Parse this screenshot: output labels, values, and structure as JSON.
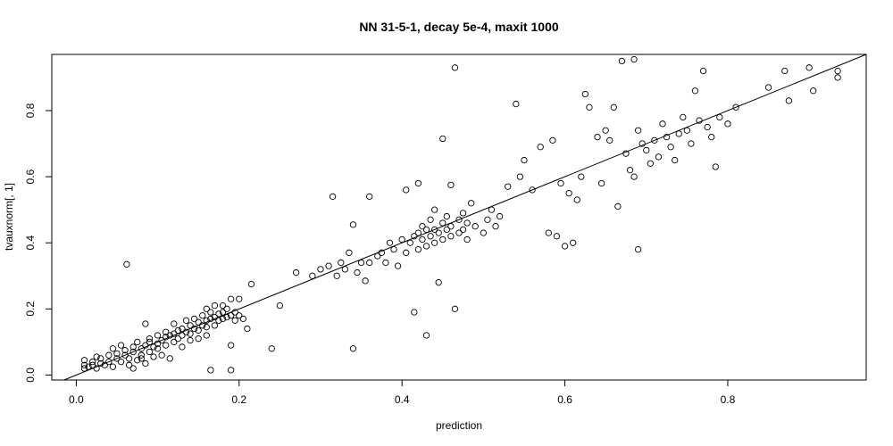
{
  "chart_data": {
    "type": "scatter",
    "title": "NN 31-5-1, decay 5e-4, maxit 1000",
    "xlabel": "prediction",
    "ylabel": "tvauxnorm[, 1]",
    "xlim": [
      -0.03,
      0.97
    ],
    "ylim": [
      -0.015,
      0.97
    ],
    "xticks": [
      0.0,
      0.2,
      0.4,
      0.6,
      0.8
    ],
    "xtick_labels": [
      "0.0",
      "0.2",
      "0.4",
      "0.6",
      "0.8"
    ],
    "yticks": [
      0.0,
      0.2,
      0.4,
      0.6,
      0.8
    ],
    "ytick_labels": [
      "0.0",
      "0.2",
      "0.4",
      "0.6",
      "0.8"
    ],
    "grid": false,
    "legend": "none",
    "reference_line": {
      "intercept": 0.0,
      "slope": 1.0
    },
    "colors": {
      "points": "#000000",
      "line": "#000000",
      "frame": "#000000"
    },
    "points": [
      [
        0.01,
        0.02
      ],
      [
        0.01,
        0.03
      ],
      [
        0.01,
        0.045
      ],
      [
        0.015,
        0.025
      ],
      [
        0.02,
        0.03
      ],
      [
        0.02,
        0.04
      ],
      [
        0.025,
        0.02
      ],
      [
        0.025,
        0.055
      ],
      [
        0.03,
        0.035
      ],
      [
        0.03,
        0.05
      ],
      [
        0.035,
        0.03
      ],
      [
        0.04,
        0.04
      ],
      [
        0.04,
        0.06
      ],
      [
        0.045,
        0.025
      ],
      [
        0.045,
        0.08
      ],
      [
        0.05,
        0.05
      ],
      [
        0.05,
        0.065
      ],
      [
        0.055,
        0.04
      ],
      [
        0.055,
        0.09
      ],
      [
        0.06,
        0.06
      ],
      [
        0.06,
        0.075
      ],
      [
        0.062,
        0.335
      ],
      [
        0.065,
        0.03
      ],
      [
        0.065,
        0.05
      ],
      [
        0.07,
        0.02
      ],
      [
        0.07,
        0.07
      ],
      [
        0.07,
        0.085
      ],
      [
        0.075,
        0.045
      ],
      [
        0.075,
        0.1
      ],
      [
        0.08,
        0.05
      ],
      [
        0.08,
        0.06
      ],
      [
        0.08,
        0.08
      ],
      [
        0.085,
        0.035
      ],
      [
        0.085,
        0.09
      ],
      [
        0.085,
        0.155
      ],
      [
        0.09,
        0.07
      ],
      [
        0.09,
        0.1
      ],
      [
        0.09,
        0.11
      ],
      [
        0.095,
        0.055
      ],
      [
        0.095,
        0.085
      ],
      [
        0.1,
        0.08
      ],
      [
        0.1,
        0.095
      ],
      [
        0.1,
        0.12
      ],
      [
        0.105,
        0.06
      ],
      [
        0.105,
        0.105
      ],
      [
        0.11,
        0.09
      ],
      [
        0.11,
        0.115
      ],
      [
        0.11,
        0.13
      ],
      [
        0.115,
        0.05
      ],
      [
        0.115,
        0.12
      ],
      [
        0.12,
        0.1
      ],
      [
        0.12,
        0.125
      ],
      [
        0.12,
        0.155
      ],
      [
        0.125,
        0.11
      ],
      [
        0.125,
        0.135
      ],
      [
        0.13,
        0.085
      ],
      [
        0.13,
        0.12
      ],
      [
        0.13,
        0.14
      ],
      [
        0.135,
        0.13
      ],
      [
        0.135,
        0.165
      ],
      [
        0.14,
        0.105
      ],
      [
        0.14,
        0.125
      ],
      [
        0.14,
        0.15
      ],
      [
        0.145,
        0.14
      ],
      [
        0.145,
        0.17
      ],
      [
        0.15,
        0.11
      ],
      [
        0.15,
        0.135
      ],
      [
        0.15,
        0.16
      ],
      [
        0.155,
        0.15
      ],
      [
        0.155,
        0.18
      ],
      [
        0.16,
        0.12
      ],
      [
        0.16,
        0.145
      ],
      [
        0.16,
        0.165
      ],
      [
        0.16,
        0.2
      ],
      [
        0.165,
        0.17
      ],
      [
        0.165,
        0.19
      ],
      [
        0.165,
        0.015
      ],
      [
        0.17,
        0.15
      ],
      [
        0.17,
        0.175
      ],
      [
        0.17,
        0.21
      ],
      [
        0.175,
        0.165
      ],
      [
        0.175,
        0.185
      ],
      [
        0.18,
        0.17
      ],
      [
        0.18,
        0.19
      ],
      [
        0.18,
        0.21
      ],
      [
        0.185,
        0.175
      ],
      [
        0.185,
        0.2
      ],
      [
        0.19,
        0.09
      ],
      [
        0.19,
        0.18
      ],
      [
        0.19,
        0.015
      ],
      [
        0.19,
        0.23
      ],
      [
        0.195,
        0.165
      ],
      [
        0.195,
        0.19
      ],
      [
        0.2,
        0.18
      ],
      [
        0.2,
        0.23
      ],
      [
        0.205,
        0.17
      ],
      [
        0.21,
        0.14
      ],
      [
        0.215,
        0.275
      ],
      [
        0.24,
        0.08
      ],
      [
        0.25,
        0.21
      ],
      [
        0.27,
        0.31
      ],
      [
        0.29,
        0.3
      ],
      [
        0.3,
        0.32
      ],
      [
        0.31,
        0.33
      ],
      [
        0.315,
        0.54
      ],
      [
        0.32,
        0.3
      ],
      [
        0.325,
        0.34
      ],
      [
        0.33,
        0.32
      ],
      [
        0.335,
        0.37
      ],
      [
        0.34,
        0.455
      ],
      [
        0.34,
        0.08
      ],
      [
        0.345,
        0.31
      ],
      [
        0.35,
        0.34
      ],
      [
        0.355,
        0.285
      ],
      [
        0.36,
        0.54
      ],
      [
        0.36,
        0.34
      ],
      [
        0.37,
        0.36
      ],
      [
        0.375,
        0.37
      ],
      [
        0.38,
        0.34
      ],
      [
        0.385,
        0.4
      ],
      [
        0.39,
        0.38
      ],
      [
        0.395,
        0.33
      ],
      [
        0.4,
        0.41
      ],
      [
        0.405,
        0.56
      ],
      [
        0.405,
        0.37
      ],
      [
        0.41,
        0.4
      ],
      [
        0.415,
        0.42
      ],
      [
        0.415,
        0.19
      ],
      [
        0.42,
        0.43
      ],
      [
        0.42,
        0.38
      ],
      [
        0.42,
        0.58
      ],
      [
        0.425,
        0.41
      ],
      [
        0.425,
        0.45
      ],
      [
        0.43,
        0.44
      ],
      [
        0.43,
        0.39
      ],
      [
        0.43,
        0.12
      ],
      [
        0.435,
        0.42
      ],
      [
        0.435,
        0.47
      ],
      [
        0.44,
        0.4
      ],
      [
        0.44,
        0.44
      ],
      [
        0.44,
        0.5
      ],
      [
        0.445,
        0.43
      ],
      [
        0.445,
        0.28
      ],
      [
        0.45,
        0.41
      ],
      [
        0.45,
        0.46
      ],
      [
        0.45,
        0.715
      ],
      [
        0.455,
        0.44
      ],
      [
        0.455,
        0.48
      ],
      [
        0.46,
        0.42
      ],
      [
        0.46,
        0.45
      ],
      [
        0.46,
        0.575
      ],
      [
        0.465,
        0.93
      ],
      [
        0.465,
        0.2
      ],
      [
        0.47,
        0.43
      ],
      [
        0.47,
        0.47
      ],
      [
        0.475,
        0.44
      ],
      [
        0.475,
        0.49
      ],
      [
        0.48,
        0.41
      ],
      [
        0.48,
        0.46
      ],
      [
        0.485,
        0.52
      ],
      [
        0.49,
        0.45
      ],
      [
        0.5,
        0.43
      ],
      [
        0.505,
        0.47
      ],
      [
        0.51,
        0.5
      ],
      [
        0.515,
        0.45
      ],
      [
        0.52,
        0.48
      ],
      [
        0.53,
        0.57
      ],
      [
        0.54,
        0.82
      ],
      [
        0.545,
        0.6
      ],
      [
        0.55,
        0.65
      ],
      [
        0.56,
        0.56
      ],
      [
        0.57,
        0.69
      ],
      [
        0.58,
        0.43
      ],
      [
        0.585,
        0.71
      ],
      [
        0.59,
        0.42
      ],
      [
        0.595,
        0.58
      ],
      [
        0.6,
        0.39
      ],
      [
        0.605,
        0.55
      ],
      [
        0.61,
        0.4
      ],
      [
        0.615,
        0.53
      ],
      [
        0.62,
        0.6
      ],
      [
        0.625,
        0.85
      ],
      [
        0.63,
        0.81
      ],
      [
        0.64,
        0.72
      ],
      [
        0.645,
        0.58
      ],
      [
        0.65,
        0.74
      ],
      [
        0.655,
        0.71
      ],
      [
        0.66,
        0.81
      ],
      [
        0.665,
        0.51
      ],
      [
        0.67,
        0.95
      ],
      [
        0.675,
        0.67
      ],
      [
        0.68,
        0.62
      ],
      [
        0.685,
        0.6
      ],
      [
        0.685,
        0.955
      ],
      [
        0.69,
        0.38
      ],
      [
        0.69,
        0.74
      ],
      [
        0.695,
        0.7
      ],
      [
        0.7,
        0.68
      ],
      [
        0.705,
        0.64
      ],
      [
        0.71,
        0.71
      ],
      [
        0.715,
        0.66
      ],
      [
        0.72,
        0.76
      ],
      [
        0.725,
        0.72
      ],
      [
        0.73,
        0.69
      ],
      [
        0.735,
        0.65
      ],
      [
        0.74,
        0.73
      ],
      [
        0.745,
        0.78
      ],
      [
        0.75,
        0.74
      ],
      [
        0.755,
        0.7
      ],
      [
        0.76,
        0.86
      ],
      [
        0.765,
        0.77
      ],
      [
        0.77,
        0.92
      ],
      [
        0.775,
        0.75
      ],
      [
        0.78,
        0.72
      ],
      [
        0.785,
        0.63
      ],
      [
        0.79,
        0.78
      ],
      [
        0.8,
        0.76
      ],
      [
        0.81,
        0.81
      ],
      [
        0.85,
        0.87
      ],
      [
        0.87,
        0.92
      ],
      [
        0.875,
        0.83
      ],
      [
        0.9,
        0.93
      ],
      [
        0.905,
        0.86
      ],
      [
        0.935,
        0.9
      ],
      [
        0.935,
        0.92
      ]
    ]
  }
}
